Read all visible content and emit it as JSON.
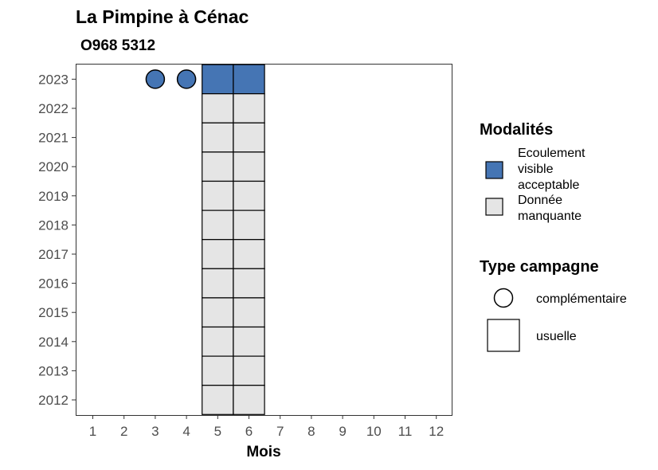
{
  "chart_data": {
    "type": "heatmap",
    "title": "La Pimpine à Cénac",
    "subtitle": "O968 5312",
    "xlabel": "Mois",
    "ylabel": "",
    "x_categories": [
      "1",
      "2",
      "3",
      "4",
      "5",
      "6",
      "7",
      "8",
      "9",
      "10",
      "11",
      "12"
    ],
    "y_categories": [
      "2012",
      "2013",
      "2014",
      "2015",
      "2016",
      "2017",
      "2018",
      "2019",
      "2020",
      "2021",
      "2022",
      "2023"
    ],
    "cells": [
      {
        "year": "2023",
        "month": 5,
        "modalite": "Ecoulement visible acceptable",
        "campagne": "usuelle"
      },
      {
        "year": "2023",
        "month": 6,
        "modalite": "Ecoulement visible acceptable",
        "campagne": "usuelle"
      },
      {
        "year": "2023",
        "month": 3,
        "modalite": "Ecoulement visible acceptable",
        "campagne": "complémentaire"
      },
      {
        "year": "2023",
        "month": 4,
        "modalite": "Ecoulement visible acceptable",
        "campagne": "complémentaire"
      },
      {
        "year": "2022",
        "month": 5,
        "modalite": "Donnée manquante",
        "campagne": "usuelle"
      },
      {
        "year": "2022",
        "month": 6,
        "modalite": "Donnée manquante",
        "campagne": "usuelle"
      },
      {
        "year": "2021",
        "month": 5,
        "modalite": "Donnée manquante",
        "campagne": "usuelle"
      },
      {
        "year": "2021",
        "month": 6,
        "modalite": "Donnée manquante",
        "campagne": "usuelle"
      },
      {
        "year": "2020",
        "month": 5,
        "modalite": "Donnée manquante",
        "campagne": "usuelle"
      },
      {
        "year": "2020",
        "month": 6,
        "modalite": "Donnée manquante",
        "campagne": "usuelle"
      },
      {
        "year": "2019",
        "month": 5,
        "modalite": "Donnée manquante",
        "campagne": "usuelle"
      },
      {
        "year": "2019",
        "month": 6,
        "modalite": "Donnée manquante",
        "campagne": "usuelle"
      },
      {
        "year": "2018",
        "month": 5,
        "modalite": "Donnée manquante",
        "campagne": "usuelle"
      },
      {
        "year": "2018",
        "month": 6,
        "modalite": "Donnée manquante",
        "campagne": "usuelle"
      },
      {
        "year": "2017",
        "month": 5,
        "modalite": "Donnée manquante",
        "campagne": "usuelle"
      },
      {
        "year": "2017",
        "month": 6,
        "modalite": "Donnée manquante",
        "campagne": "usuelle"
      },
      {
        "year": "2016",
        "month": 5,
        "modalite": "Donnée manquante",
        "campagne": "usuelle"
      },
      {
        "year": "2016",
        "month": 6,
        "modalite": "Donnée manquante",
        "campagne": "usuelle"
      },
      {
        "year": "2015",
        "month": 5,
        "modalite": "Donnée manquante",
        "campagne": "usuelle"
      },
      {
        "year": "2015",
        "month": 6,
        "modalite": "Donnée manquante",
        "campagne": "usuelle"
      },
      {
        "year": "2014",
        "month": 5,
        "modalite": "Donnée manquante",
        "campagne": "usuelle"
      },
      {
        "year": "2014",
        "month": 6,
        "modalite": "Donnée manquante",
        "campagne": "usuelle"
      },
      {
        "year": "2013",
        "month": 5,
        "modalite": "Donnée manquante",
        "campagne": "usuelle"
      },
      {
        "year": "2013",
        "month": 6,
        "modalite": "Donnée manquante",
        "campagne": "usuelle"
      },
      {
        "year": "2012",
        "month": 5,
        "modalite": "Donnée manquante",
        "campagne": "usuelle"
      },
      {
        "year": "2012",
        "month": 6,
        "modalite": "Donnée manquante",
        "campagne": "usuelle"
      }
    ],
    "legend": {
      "modalites_title": "Modalités",
      "modalites": [
        {
          "lines": [
            "Ecoulement",
            "visible",
            "acceptable"
          ],
          "color": "#4575b4"
        },
        {
          "lines": [
            "Donnée",
            "manquante"
          ],
          "color": "#e5e5e5"
        }
      ],
      "campagne_title": "Type campagne",
      "campagnes": [
        {
          "label": "complémentaire",
          "shape": "circle"
        },
        {
          "label": "usuelle",
          "shape": "square"
        }
      ],
      "placement": "right"
    },
    "grid": false
  }
}
